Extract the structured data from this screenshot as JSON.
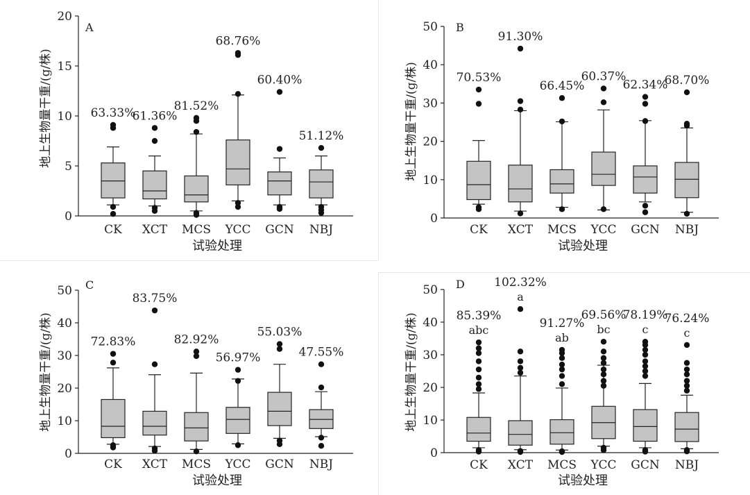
{
  "chart_data": [
    {
      "type": "boxplot",
      "panel_label": "A",
      "xlabel": "试验处理",
      "ylabel": "地上生物量干重/(g/株)",
      "ylim": [
        0,
        20
      ],
      "yticks": [
        0,
        5,
        10,
        15,
        20
      ],
      "categories": [
        "CK",
        "XCT",
        "MCS",
        "YCC",
        "GCN",
        "NBJ"
      ],
      "cv_labels": [
        "63.33%",
        "61.36%",
        "81.52%",
        "68.76%",
        "60.40%",
        "51.12%"
      ],
      "sig_labels": [
        "",
        "",
        "",
        "",
        "",
        ""
      ],
      "boxes": [
        {
          "q1": 1.8,
          "median": 3.5,
          "q3": 5.3,
          "low": 1.1,
          "high": 6.9,
          "outliers": [
            0.2,
            0.9,
            8.8,
            9.1
          ]
        },
        {
          "q1": 1.7,
          "median": 2.5,
          "q3": 4.5,
          "low": 1.0,
          "high": 6.0,
          "outliers": [
            0.5,
            0.8,
            7.5,
            8.8
          ]
        },
        {
          "q1": 1.4,
          "median": 2.1,
          "q3": 4.0,
          "low": 0.5,
          "high": 8.2,
          "outliers": [
            0.1,
            0.3,
            8.4,
            9.5,
            9.8
          ]
        },
        {
          "q1": 3.1,
          "median": 4.7,
          "q3": 7.6,
          "low": 1.5,
          "high": 12.1,
          "outliers": [
            0.9,
            1.3,
            12.2,
            16.1,
            16.3
          ]
        },
        {
          "q1": 2.1,
          "median": 3.5,
          "q3": 4.4,
          "low": 1.1,
          "high": 5.8,
          "outliers": [
            0.7,
            0.9,
            6.7,
            12.4
          ]
        },
        {
          "q1": 1.8,
          "median": 3.4,
          "q3": 4.6,
          "low": 1.1,
          "high": 6.0,
          "outliers": [
            0.3,
            0.6,
            0.9,
            6.8
          ]
        }
      ]
    },
    {
      "type": "boxplot",
      "panel_label": "B",
      "xlabel": "试验处理",
      "ylabel": "地上生物量干重/(g/株)",
      "ylim": [
        0,
        50
      ],
      "yticks": [
        0,
        10,
        20,
        30,
        40,
        50
      ],
      "categories": [
        "CK",
        "XCT",
        "MCS",
        "YCC",
        "GCN",
        "NBJ"
      ],
      "cv_labels": [
        "70.53%",
        "91.30%",
        "66.45%",
        "60.37%",
        "62.34%",
        "68.70%"
      ],
      "sig_labels": [
        "",
        "",
        "",
        "",
        "",
        ""
      ],
      "boxes": [
        {
          "q1": 4.8,
          "median": 8.7,
          "q3": 14.8,
          "low": 3.6,
          "high": 20.2,
          "outliers": [
            2.3,
            2.8,
            29.8,
            33.5
          ]
        },
        {
          "q1": 4.2,
          "median": 7.6,
          "q3": 13.8,
          "low": 1.8,
          "high": 28.0,
          "outliers": [
            1.2,
            28.3,
            30.5,
            44.2
          ]
        },
        {
          "q1": 6.5,
          "median": 8.9,
          "q3": 12.6,
          "low": 2.8,
          "high": 25.1,
          "outliers": [
            2.3,
            25.2,
            31.3
          ]
        },
        {
          "q1": 8.5,
          "median": 11.4,
          "q3": 17.2,
          "low": 2.1,
          "high": 28.2,
          "outliers": [
            2.3,
            30.2,
            33.8
          ]
        },
        {
          "q1": 6.5,
          "median": 10.7,
          "q3": 13.6,
          "low": 4.2,
          "high": 25.4,
          "outliers": [
            1.5,
            3.2,
            25.3,
            29.8,
            31.6
          ]
        },
        {
          "q1": 5.3,
          "median": 10.1,
          "q3": 14.5,
          "low": 1.5,
          "high": 23.5,
          "outliers": [
            1.1,
            24.1,
            24.6,
            32.8
          ]
        }
      ]
    },
    {
      "type": "boxplot",
      "panel_label": "C",
      "xlabel": "试验处理",
      "ylabel": "地上生物量干重/(g/株)",
      "ylim": [
        0,
        50
      ],
      "yticks": [
        0,
        10,
        20,
        30,
        40,
        50
      ],
      "categories": [
        "CK",
        "XCT",
        "MCS",
        "YCC",
        "GCN",
        "NBJ"
      ],
      "cv_labels": [
        "72.83%",
        "83.75%",
        "82.92%",
        "56.97%",
        "55.03%",
        "47.55%"
      ],
      "sig_labels": [
        "",
        "",
        "",
        "",
        "",
        ""
      ],
      "boxes": [
        {
          "q1": 4.8,
          "median": 8.3,
          "q3": 16.5,
          "low": 2.8,
          "high": 26.2,
          "outliers": [
            1.8,
            2.5,
            27.8,
            30.5
          ]
        },
        {
          "q1": 5.6,
          "median": 8.3,
          "q3": 12.9,
          "low": 2.1,
          "high": 24.1,
          "outliers": [
            0.8,
            1.5,
            27.3,
            43.8
          ]
        },
        {
          "q1": 3.8,
          "median": 7.8,
          "q3": 12.5,
          "low": 1.2,
          "high": 24.6,
          "outliers": [
            0.6,
            29.8,
            31.2
          ]
        },
        {
          "q1": 6.1,
          "median": 10.4,
          "q3": 14.1,
          "low": 2.9,
          "high": 22.8,
          "outliers": [
            2.5,
            22.2,
            25.6
          ]
        },
        {
          "q1": 8.5,
          "median": 12.9,
          "q3": 18.7,
          "low": 4.6,
          "high": 27.3,
          "outliers": [
            2.8,
            3.9,
            32.0,
            33.5
          ]
        },
        {
          "q1": 7.6,
          "median": 10.4,
          "q3": 13.4,
          "low": 5.1,
          "high": 18.9,
          "outliers": [
            2.3,
            4.8,
            20.2,
            27.3
          ]
        }
      ]
    },
    {
      "type": "boxplot",
      "panel_label": "D",
      "xlabel": "试验处理",
      "ylabel": "地上生物量干重/(g/株)",
      "ylim": [
        0,
        50
      ],
      "yticks": [
        0,
        10,
        20,
        30,
        40,
        50
      ],
      "categories": [
        "CK",
        "XCT",
        "MCS",
        "YCC",
        "GCN",
        "NBJ"
      ],
      "cv_labels": [
        "85.39%",
        "102.32%",
        "91.27%",
        "69.56%",
        "78.19%",
        "76.24%"
      ],
      "sig_labels": [
        "abc",
        "a",
        "ab",
        "bc",
        "c",
        "c"
      ],
      "boxes": [
        {
          "q1": 3.5,
          "median": 6.0,
          "q3": 10.8,
          "low": 1.5,
          "high": 18.3,
          "outliers": [
            0.3,
            0.8,
            19.5,
            21.0,
            23.0,
            25.5,
            28.0,
            30.5,
            32.0,
            33.8
          ]
        },
        {
          "q1": 2.3,
          "median": 5.6,
          "q3": 9.8,
          "low": 0.9,
          "high": 23.5,
          "outliers": [
            0.2,
            0.5,
            24.5,
            26.0,
            28.0,
            31.0,
            44.0
          ]
        },
        {
          "q1": 2.6,
          "median": 6.1,
          "q3": 10.1,
          "low": 0.8,
          "high": 19.8,
          "outliers": [
            0.2,
            0.4,
            21.0,
            23.5,
            25.5,
            27.0,
            29.0,
            30.5,
            31.5
          ]
        },
        {
          "q1": 4.3,
          "median": 9.2,
          "q3": 14.2,
          "low": 2.0,
          "high": 26.8,
          "outliers": [
            0.8,
            1.5,
            20.5,
            22.0,
            24.0,
            25.5,
            27.5,
            29.0,
            31.0,
            34.0
          ]
        },
        {
          "q1": 3.5,
          "median": 8.0,
          "q3": 13.2,
          "low": 1.5,
          "high": 21.2,
          "outliers": [
            0.3,
            0.8,
            23.5,
            25.0,
            26.5,
            28.0,
            30.0,
            31.5,
            33.0,
            34.0
          ]
        },
        {
          "q1": 3.4,
          "median": 7.2,
          "q3": 12.3,
          "low": 1.2,
          "high": 17.6,
          "outliers": [
            0.4,
            0.8,
            19.0,
            20.5,
            22.0,
            24.0,
            25.5,
            27.5,
            33.0
          ]
        }
      ]
    }
  ]
}
